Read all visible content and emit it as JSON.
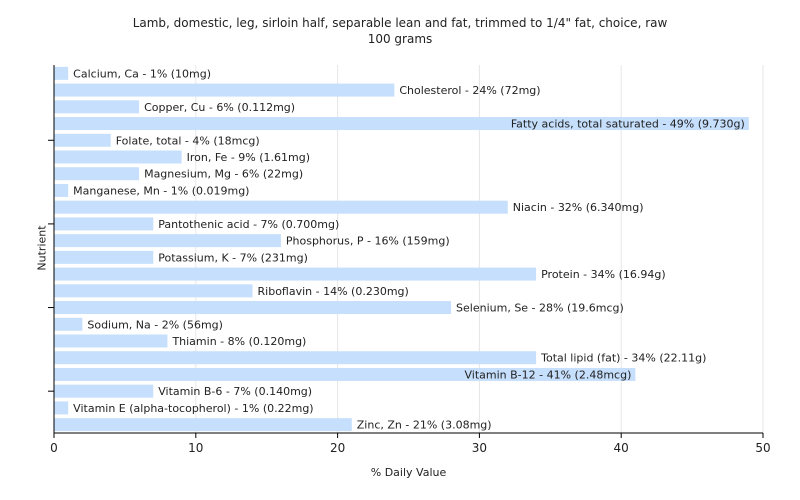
{
  "chart_data": {
    "type": "bar",
    "orientation": "horizontal",
    "title": "Lamb, domestic, leg, sirloin half, separable lean and fat, trimmed to 1/4\" fat, choice, raw",
    "subtitle": "100 grams",
    "xlabel": "% Daily Value",
    "ylabel": "Nutrient",
    "xlim": [
      0,
      50
    ],
    "xticks": [
      0,
      10,
      20,
      30,
      40,
      50
    ],
    "grid": true,
    "bar_color": "#c6dffc",
    "categories": [
      "Calcium, Ca",
      "Cholesterol",
      "Copper, Cu",
      "Fatty acids, total saturated",
      "Folate, total",
      "Iron, Fe",
      "Magnesium, Mg",
      "Manganese, Mn",
      "Niacin",
      "Pantothenic acid",
      "Phosphorus, P",
      "Potassium, K",
      "Protein",
      "Riboflavin",
      "Selenium, Se",
      "Sodium, Na",
      "Thiamin",
      "Total lipid (fat)",
      "Vitamin B-12",
      "Vitamin B-6",
      "Vitamin E (alpha-tocopherol)",
      "Zinc, Zn"
    ],
    "values": [
      1,
      24,
      6,
      49,
      4,
      9,
      6,
      1,
      32,
      7,
      16,
      7,
      34,
      14,
      28,
      2,
      8,
      34,
      41,
      7,
      1,
      21
    ],
    "labels": [
      "Calcium, Ca - 1% (10mg)",
      "Cholesterol - 24% (72mg)",
      "Copper, Cu - 6% (0.112mg)",
      "Fatty acids, total saturated - 49% (9.730g)",
      "Folate, total - 4% (18mcg)",
      "Iron, Fe - 9% (1.61mg)",
      "Magnesium, Mg - 6% (22mg)",
      "Manganese, Mn - 1% (0.019mg)",
      "Niacin - 32% (6.340mg)",
      "Pantothenic acid - 7% (0.700mg)",
      "Phosphorus, P - 16% (159mg)",
      "Potassium, K - 7% (231mg)",
      "Protein - 34% (16.94g)",
      "Riboflavin - 14% (0.230mg)",
      "Selenium, Se - 28% (19.6mcg)",
      "Sodium, Na - 2% (56mg)",
      "Thiamin - 8% (0.120mg)",
      "Total lipid (fat) - 34% (22.11g)",
      "Vitamin B-12 - 41% (2.48mcg)",
      "Vitamin B-6 - 7% (0.140mg)",
      "Vitamin E (alpha-tocopherol) - 1% (0.22mg)",
      "Zinc, Zn - 21% (3.08mg)"
    ]
  }
}
